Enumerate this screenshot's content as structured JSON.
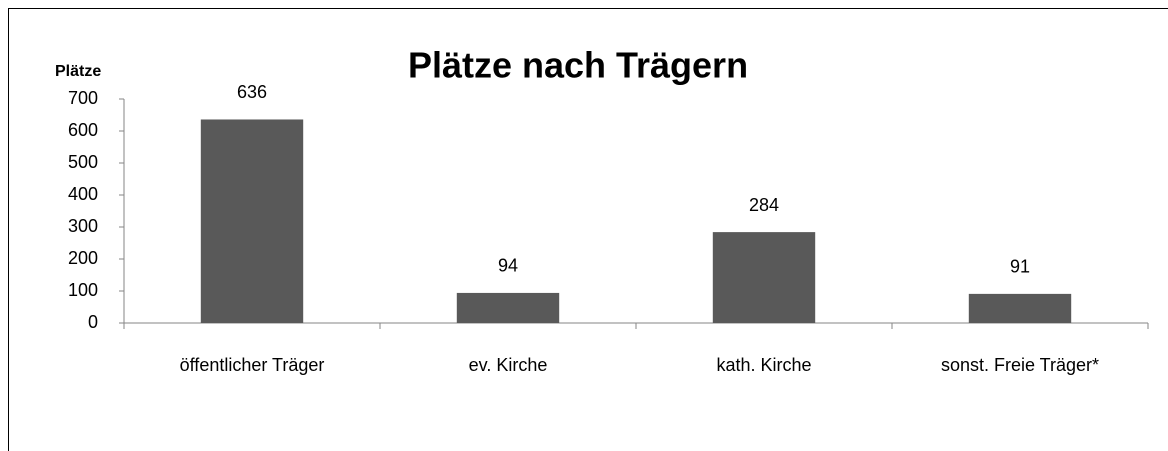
{
  "chart_data": {
    "type": "bar",
    "title": "Plätze nach Trägern",
    "y_label": "Plätze",
    "categories": [
      "öffentlicher Träger",
      "ev. Kirche",
      "kath. Kirche",
      "sonst. Freie Träger*"
    ],
    "values": [
      636,
      94,
      284,
      91
    ],
    "color": "#595959",
    "ylim": [
      0,
      700
    ],
    "yticks": [
      0,
      100,
      200,
      300,
      400,
      500,
      600,
      700
    ],
    "grid": false
  }
}
